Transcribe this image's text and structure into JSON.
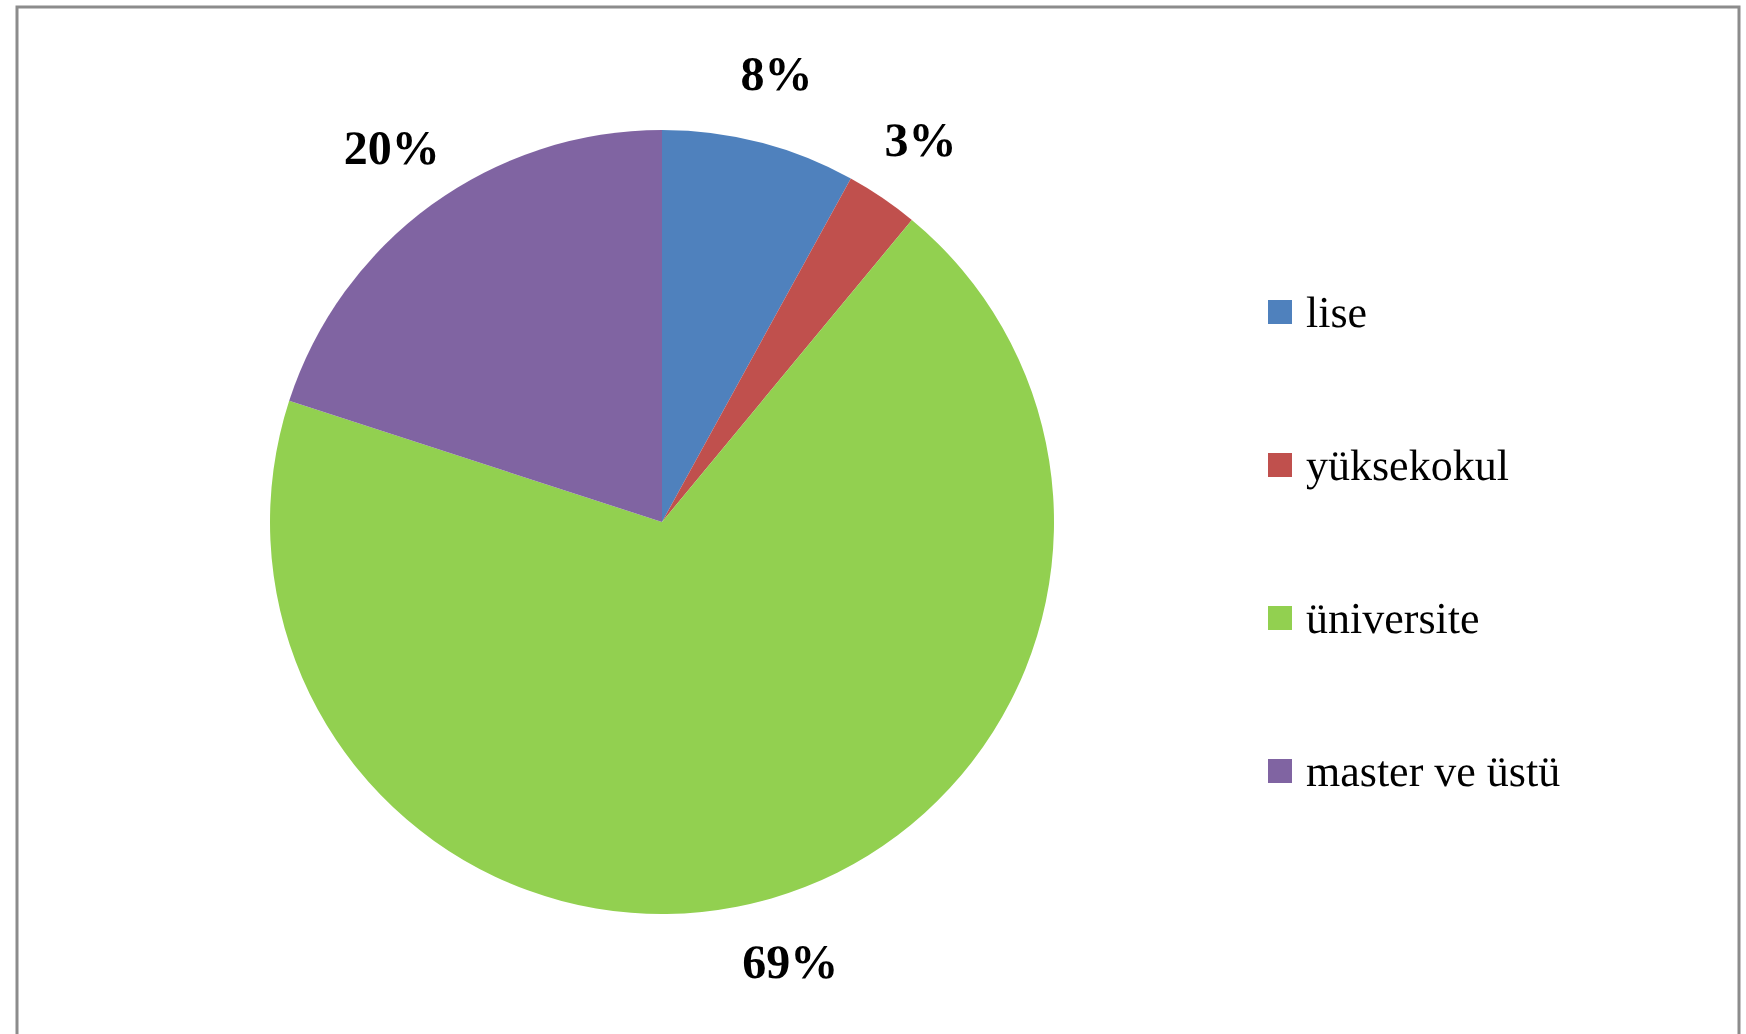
{
  "chart_data": {
    "type": "pie",
    "categories": [
      "lise",
      "yüksekokul",
      "üniversite",
      "master ve üstü"
    ],
    "values": [
      8,
      3,
      69,
      20
    ],
    "value_labels": [
      "8%",
      "3%",
      "69%",
      "20%"
    ],
    "colors": [
      "#4f81bd",
      "#c0504d",
      "#92d050",
      "#8064a2"
    ],
    "legend": "right"
  }
}
